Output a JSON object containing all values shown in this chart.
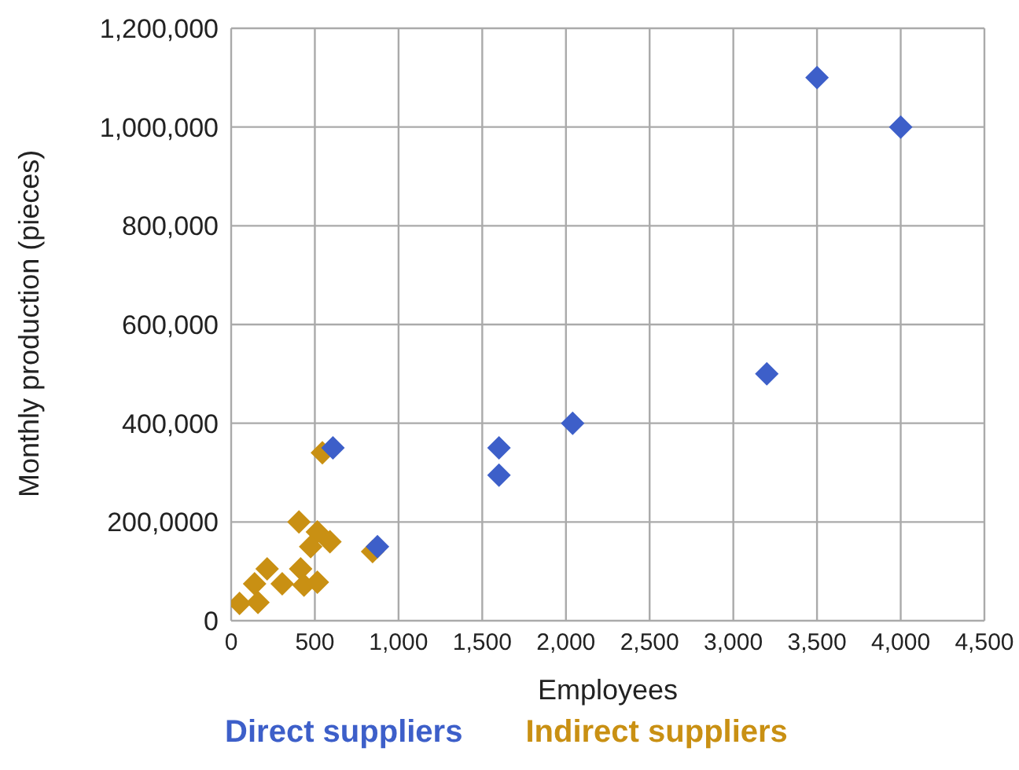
{
  "chart_data": {
    "type": "scatter",
    "xlabel": "Employees",
    "ylabel": "Monthly production (pieces)",
    "xlim": [
      0,
      4500
    ],
    "ylim": [
      0,
      1200000
    ],
    "xticks": [
      0,
      500,
      {
        "value": 1000,
        "label": "1,000"
      },
      {
        "value": 1500,
        "label": "1,500"
      },
      {
        "value": 2000,
        "label": "2,000"
      },
      {
        "value": 2500,
        "label": "2,500"
      },
      {
        "value": 3000,
        "label": "3,000"
      },
      {
        "value": 3500,
        "label": "3,500"
      },
      {
        "value": 4000,
        "label": "4,000"
      },
      {
        "value": 4500,
        "label": "4,500"
      }
    ],
    "yticks": [
      0,
      {
        "value": 200000,
        "label": "200,0000"
      },
      {
        "value": 400000,
        "label": "400,000"
      },
      {
        "value": 600000,
        "label": "600,000"
      },
      {
        "value": 800000,
        "label": "800,000"
      },
      {
        "value": 1000000,
        "label": "1,000,000"
      },
      {
        "value": 1200000,
        "label": "1,200,000"
      }
    ],
    "grid": true,
    "legend": "bottom",
    "marker": "diamond",
    "series": [
      {
        "name": "Direct suppliers",
        "color": "#3d5fc9",
        "x": [
          608,
          874,
          1600,
          1600,
          2040,
          3200,
          3500,
          4000
        ],
        "values": [
          350000,
          150000,
          350000,
          295000,
          400000,
          500000,
          1100000,
          1000000
        ]
      },
      {
        "name": "Indirect suppliers",
        "color": "#c99013",
        "x": [
          50,
          160,
          140,
          215,
          305,
          405,
          515,
          475,
          590,
          415,
          435,
          515,
          545,
          845
        ],
        "values": [
          35000,
          37000,
          75000,
          105000,
          75000,
          200000,
          180000,
          150000,
          160000,
          105000,
          72000,
          78000,
          340000,
          140000
        ]
      }
    ]
  }
}
